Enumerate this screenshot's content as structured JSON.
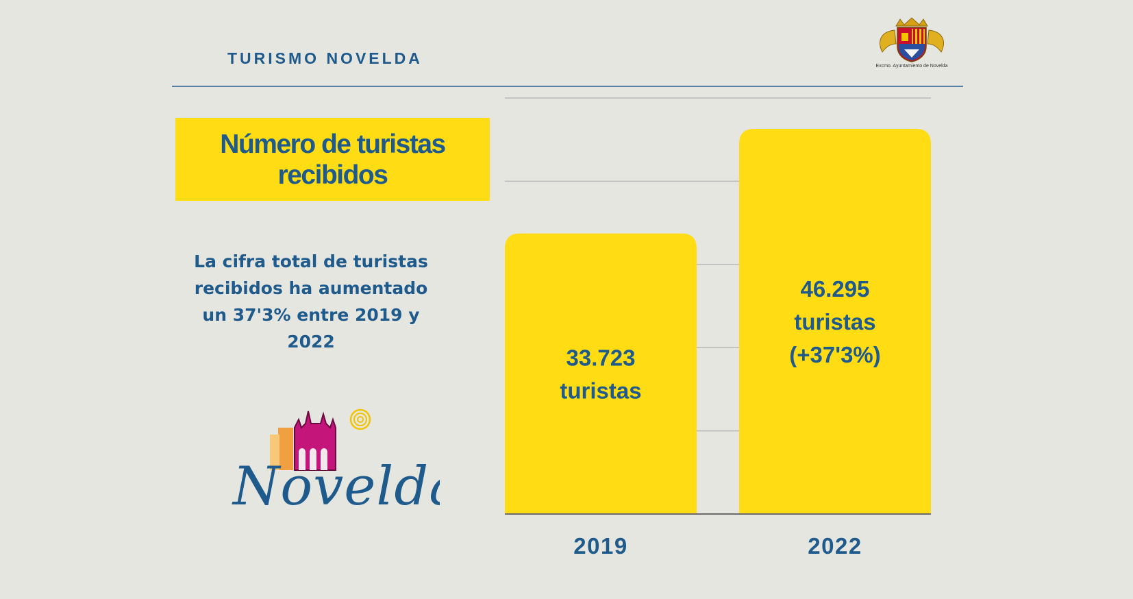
{
  "header": {
    "title": "TURISMO NOVELDA",
    "crest_caption": "Excmo. Ayuntamiento de Novelda"
  },
  "title_box": {
    "title": "Número de turistas recibidos"
  },
  "description": "La cifra total de turistas recibidos ha aumentado un 37'3% entre 2019 y 2022",
  "logo": {
    "text": "Novelda"
  },
  "colors": {
    "background": "#e6e6e1",
    "accent_yellow": "#ffdc14",
    "text_blue": "#1f5a8c",
    "gridline": "#b8b8b8"
  },
  "chart_data": {
    "type": "bar",
    "categories": [
      "2019",
      "2022"
    ],
    "values": [
      33723,
      46295
    ],
    "data_labels": [
      [
        "33.723",
        "turistas"
      ],
      [
        "46.295",
        "turistas",
        "(+37'3%)"
      ]
    ],
    "title": "Número de turistas recibidos",
    "xlabel": "",
    "ylabel": "",
    "ylim": [
      0,
      50000
    ],
    "grid": true,
    "legend": "none"
  }
}
